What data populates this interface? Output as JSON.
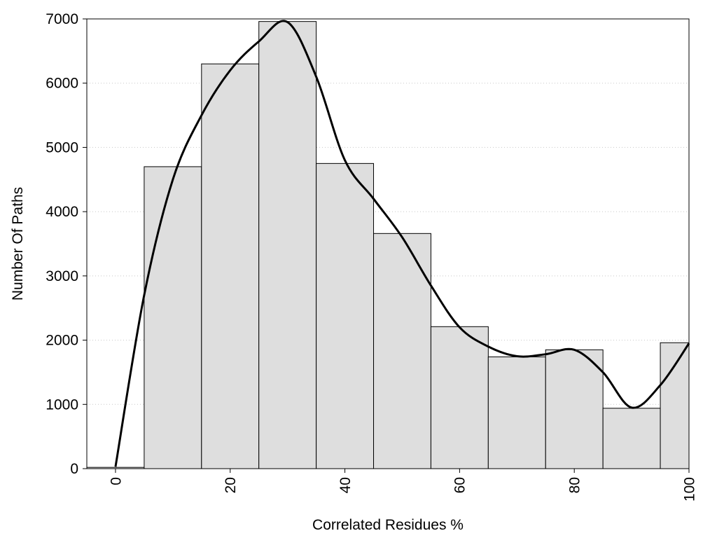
{
  "chart_data": {
    "type": "bar",
    "title": "",
    "xlabel": "Correlated Residues %",
    "ylabel": "Number Of Paths",
    "x": [
      0,
      10,
      20,
      30,
      40,
      50,
      60,
      70,
      80,
      90,
      100
    ],
    "values": [
      20,
      4700,
      6300,
      6960,
      4750,
      3660,
      2210,
      1740,
      1850,
      940,
      1960
    ],
    "bin_width": 10,
    "xlim": [
      -5,
      100
    ],
    "ylim": [
      0,
      7000
    ],
    "x_ticks": [
      0,
      20,
      40,
      60,
      80,
      100
    ],
    "y_ticks": [
      0,
      1000,
      2000,
      3000,
      4000,
      5000,
      6000,
      7000
    ],
    "grid": "horizontal dotted",
    "legend": "none",
    "bar_color": "#dedede",
    "curve": {
      "type": "density-smooth",
      "points": [
        [
          0,
          30
        ],
        [
          5,
          2700
        ],
        [
          10,
          4500
        ],
        [
          15,
          5500
        ],
        [
          20,
          6200
        ],
        [
          25,
          6650
        ],
        [
          30,
          6950
        ],
        [
          35,
          6100
        ],
        [
          40,
          4800
        ],
        [
          45,
          4200
        ],
        [
          50,
          3600
        ],
        [
          55,
          2850
        ],
        [
          60,
          2200
        ],
        [
          65,
          1900
        ],
        [
          70,
          1750
        ],
        [
          75,
          1780
        ],
        [
          80,
          1850
        ],
        [
          85,
          1500
        ],
        [
          90,
          950
        ],
        [
          95,
          1300
        ],
        [
          100,
          1950
        ]
      ]
    }
  }
}
